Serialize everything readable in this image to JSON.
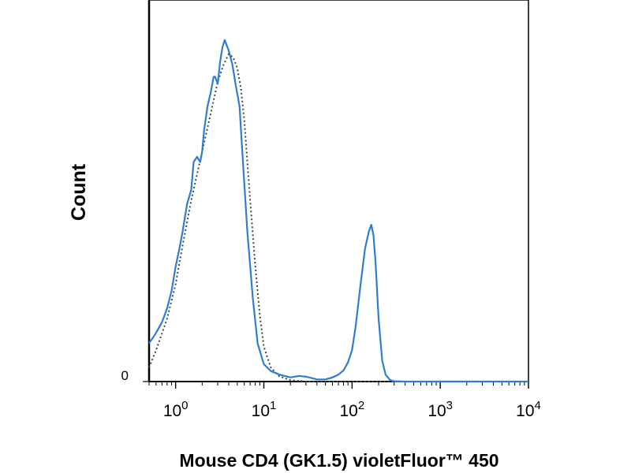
{
  "chart_data": {
    "type": "line",
    "title": "",
    "xlabel": "Mouse CD4 (GK1.5) violetFluor™ 450",
    "ylabel": "Count",
    "x_scale": "log",
    "xlim": [
      0.5,
      10000
    ],
    "ylim": [
      0,
      100
    ],
    "x_ticks": [
      {
        "value": 1,
        "base": "10",
        "exp": "0"
      },
      {
        "value": 10,
        "base": "10",
        "exp": "1"
      },
      {
        "value": 100,
        "base": "10",
        "exp": "2"
      },
      {
        "value": 1000,
        "base": "10",
        "exp": "3"
      },
      {
        "value": 10000,
        "base": "10",
        "exp": "4"
      }
    ],
    "y_ticks": [
      {
        "value": 0,
        "label": "0"
      }
    ],
    "grid": false,
    "legend": "none",
    "series": [
      {
        "color": "#2f7dd1",
        "style": "solid",
        "x": [
          0.5,
          0.55,
          0.6,
          0.7,
          0.8,
          0.9,
          1.0,
          1.1,
          1.2,
          1.35,
          1.5,
          1.6,
          1.75,
          1.9,
          2.0,
          2.1,
          2.3,
          2.5,
          2.7,
          2.8,
          3.0,
          3.2,
          3.4,
          3.6,
          4.0,
          4.4,
          4.8,
          5.3,
          5.8,
          6.5,
          7.5,
          8.5,
          10,
          12,
          15,
          20,
          25,
          30,
          35,
          40,
          50,
          60,
          70,
          80,
          90,
          100,
          110,
          125,
          140,
          155,
          165,
          175,
          185,
          200,
          220,
          240,
          270,
          300,
          400,
          1000,
          10000
        ],
        "values": [
          11,
          12.5,
          14,
          17,
          21,
          26,
          33,
          38,
          43,
          51,
          55,
          63,
          64.5,
          63,
          66,
          72,
          79,
          83,
          87.5,
          87.5,
          85.5,
          92,
          96,
          98,
          95,
          91,
          85,
          79,
          63,
          43,
          24,
          11,
          5,
          3,
          2,
          1.2,
          1.6,
          1.4,
          1,
          0.6,
          0.6,
          1.2,
          2,
          3.2,
          5.5,
          9,
          16,
          28,
          38,
          43,
          45,
          42,
          34,
          18,
          6,
          2,
          0.4,
          0.1,
          0,
          0,
          0
        ]
      },
      {
        "color": "#444444",
        "style": "dotted",
        "x": [
          0.5,
          0.6,
          0.8,
          1.0,
          1.2,
          1.5,
          2.0,
          2.5,
          3.0,
          3.5,
          4.0,
          4.5,
          5.0,
          5.5,
          6.0,
          7.0,
          8.0,
          9.0,
          10,
          12,
          15,
          20,
          30,
          10000
        ],
        "values": [
          4,
          9,
          18,
          28,
          39,
          52,
          66,
          77,
          86,
          91,
          94,
          93,
          90,
          84,
          75,
          52,
          33,
          19,
          10,
          4,
          1.5,
          0.4,
          0,
          0
        ]
      }
    ]
  }
}
